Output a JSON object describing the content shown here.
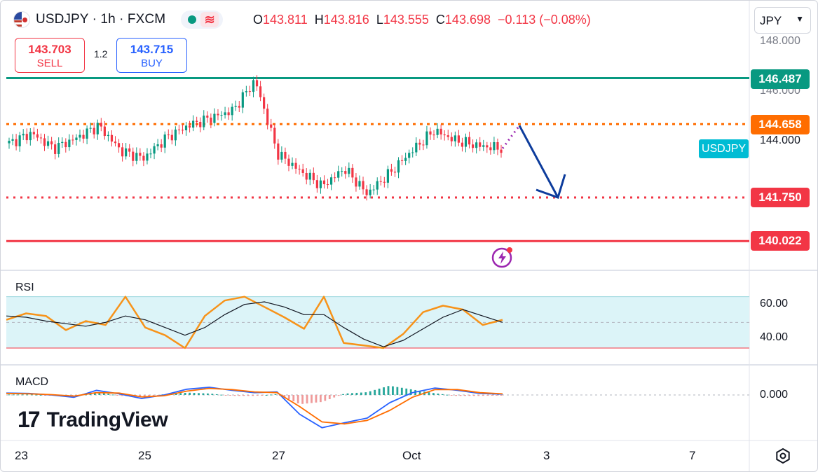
{
  "header": {
    "symbol": "USDJPY",
    "interval": "1h",
    "source": "FXCM",
    "title": "USDJPY · 1h · FXCM",
    "ohlc": [
      {
        "key": "O",
        "value": "143.811"
      },
      {
        "key": "H",
        "value": "143.816"
      },
      {
        "key": "L",
        "value": "143.555"
      },
      {
        "key": "C",
        "value": "143.698"
      }
    ],
    "change": "−0.113 (−0.08%)",
    "wave_icon": "≋"
  },
  "trade": {
    "sell_price": "143.703",
    "sell_label": "SELL",
    "spread": "1.2",
    "buy_price": "143.715",
    "buy_label": "BUY"
  },
  "currency_select": "JPY",
  "colors": {
    "up": "#089981",
    "down": "#f23645",
    "resistance_top": "#089981",
    "level_orange": "#ff6d00",
    "level_pink": "#f23645",
    "support_red": "#f23645",
    "rsi_line": "#f7931a",
    "rsi_ma": "#131722",
    "rsi_band": "#dcf4f8",
    "macd_line": "#2962ff",
    "signal_line": "#ff6d00",
    "arrow": "#0d3c9c",
    "symbol_tag": "#00bcd4"
  },
  "price_labels": {
    "level_1": "146.487",
    "level_2": "144.658",
    "symbol_tag": "USDJPY",
    "level_3": "141.750",
    "level_4": "140.022"
  },
  "axis": {
    "price_ticks": [
      "148.000",
      "146.000",
      "144.000"
    ],
    "rsi_ticks": [
      "60.00",
      "40.00"
    ],
    "macd_ticks": [
      "0.000"
    ],
    "time_ticks": [
      "23",
      "25",
      "27",
      "Oct",
      "3",
      "7"
    ]
  },
  "panes": {
    "rsi_label": "RSI",
    "macd_label": "MACD"
  },
  "branding": {
    "logo_mark": "17",
    "logo_text": "TradingView"
  },
  "chart_data": {
    "type": "line",
    "title": "USDJPY · 1h · FXCM",
    "ylim": [
      139.2,
      148.5
    ],
    "horizontal_levels": [
      146.487,
      144.658,
      141.75,
      140.022
    ],
    "price_path": {
      "name": "",
      "x": [
        "Sep 22 12:00",
        "Sep 23 00:00",
        "Sep 23 12:00",
        "Sep 24 00:00",
        "Sep 24 12:00",
        "Sep 25 00:00",
        "Sep 25 12:00",
        "Sep 26 00:00",
        "Sep 26 12:00",
        "Sep 27 00:00",
        "Sep 27 08:00",
        "Sep 27 10:00",
        "Sep 27 16:00",
        "Sep 28 00:00",
        "Sep 29 00:00",
        "Sep 29 12:00",
        "Sep 30 00:00",
        "Sep 30 08:00",
        "Sep 30 16:00",
        "Oct 1 00:00",
        "Oct 1 12:00",
        "Oct 2 00:00",
        "Oct 2 12:00"
      ],
      "y": [
        143.9,
        144.3,
        143.7,
        144.1,
        144.6,
        143.6,
        143.3,
        144.1,
        144.6,
        144.9,
        145.2,
        146.4,
        143.5,
        142.8,
        142.2,
        142.9,
        141.9,
        142.7,
        143.6,
        144.4,
        144.0,
        143.8,
        143.7
      ]
    },
    "projection": {
      "from": 144.658,
      "to": 141.75
    },
    "rsi": {
      "ylim": [
        24,
        78
      ],
      "x_norm_count": 24,
      "values": [
        52,
        57,
        55,
        44,
        51,
        48,
        70,
        46,
        40,
        30,
        55,
        67,
        70,
        62,
        54,
        45,
        70,
        34,
        32,
        30,
        41,
        58,
        63,
        60,
        48,
        52
      ],
      "ma": [
        55,
        54,
        51,
        49,
        47,
        50,
        55,
        52,
        46,
        40,
        46,
        56,
        64,
        66,
        62,
        56,
        56,
        46,
        37,
        31,
        36,
        45,
        54,
        60,
        55,
        50
      ]
    },
    "macd": {
      "macd": [
        0.05,
        0.04,
        0.0,
        -0.06,
        0.12,
        0.03,
        -0.09,
        0.0,
        0.15,
        0.2,
        0.12,
        0.06,
        0.08,
        -0.5,
        -0.85,
        -0.72,
        -0.6,
        -0.2,
        0.06,
        0.18,
        0.12,
        0.04,
        0.02
      ],
      "signal": [
        0.04,
        0.03,
        0.01,
        -0.03,
        0.06,
        0.05,
        -0.05,
        -0.02,
        0.1,
        0.17,
        0.14,
        0.08,
        0.06,
        -0.3,
        -0.7,
        -0.75,
        -0.66,
        -0.4,
        -0.06,
        0.14,
        0.14,
        0.06,
        0.03
      ]
    }
  }
}
